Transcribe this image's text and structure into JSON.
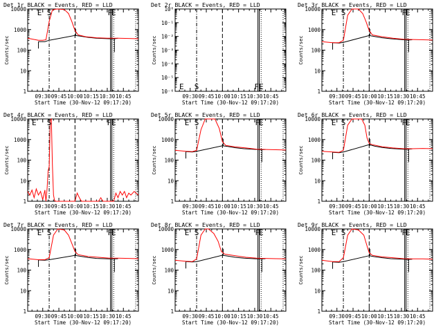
{
  "page": {
    "background": "#ffffff",
    "foreground": "#000000"
  },
  "chart_data": {
    "type": "line",
    "grid": false,
    "legend": "in-title",
    "xlabel": "Start Time (30-Nov-12 09:17:20)",
    "ylabel": "Counts/sec",
    "x_tick_labels": [
      "09:30",
      "09:45",
      "10:00",
      "10:15",
      "10:30",
      "10:45"
    ],
    "x_ticks_min": [
      570,
      585,
      600,
      615,
      630,
      645
    ],
    "xlim_min": [
      556,
      659
    ],
    "series_colors": {
      "Events": "#000000",
      "LLD": "#ff0000"
    },
    "annotations": {
      "S": "S",
      "E": "E",
      "F": "F",
      "FE": "FE"
    },
    "markers": {
      "dashdot_min": 576,
      "dashed_min": 600,
      "solid_min": 633,
      "dotted_min": 636
    },
    "panels": [
      {
        "title": "Det 1r  BLACK = Events, RED = LLD",
        "yscale": "log",
        "ylim": [
          1,
          10000
        ],
        "y_tick_labels": [
          "1",
          "10",
          "100",
          "1000",
          "10000"
        ],
        "top_letters": [
          "E",
          "S",
          "F",
          "E"
        ],
        "top_letter_x": [
          567,
          576,
          632.5,
          636
        ],
        "bottom_letters": [],
        "bottom_letter_x": [],
        "profile": "p1"
      },
      {
        "title": "Det 2r  BLACK = Events, RED = LLD",
        "yscale": "log",
        "ylim": [
          1,
          1e-06
        ],
        "y_tick_labels": [
          "10⁻⁶",
          "10⁻⁵",
          "10⁻⁴",
          "10⁻³",
          "10⁻²",
          "10⁻¹",
          "10⁰"
        ],
        "top_letters": [],
        "top_letter_x": [],
        "bottom_letters": [
          "E",
          "S",
          "FE"
        ],
        "bottom_letter_x": [
          562,
          576,
          634
        ],
        "profile": "empty"
      },
      {
        "title": "Det 3r  BLACK = Events, RED = LLD",
        "yscale": "log",
        "ylim": [
          1,
          10000
        ],
        "y_tick_labels": [
          "1",
          "10",
          "100",
          "1000",
          "10000"
        ],
        "top_letters": [
          "E",
          "S",
          "F",
          "E"
        ],
        "top_letter_x": [
          567,
          576,
          632.5,
          636
        ],
        "bottom_letters": [],
        "bottom_letter_x": [],
        "profile": "p3"
      },
      {
        "title": "Det 4r  BLACK = Events, RED = LLD",
        "yscale": "log",
        "ylim": [
          1,
          10000
        ],
        "y_tick_labels": [
          "1",
          "10",
          "100",
          "1000",
          "10000"
        ],
        "top_letters": [
          "E",
          "S",
          "FE"
        ],
        "top_letter_x": [
          562,
          576,
          634
        ],
        "bottom_letters": [],
        "bottom_letter_x": [],
        "profile": "p4"
      },
      {
        "title": "Det 5r  BLACK = Events, RED = LLD",
        "yscale": "log",
        "ylim": [
          1,
          10000
        ],
        "y_tick_labels": [
          "1",
          "10",
          "100",
          "1000",
          "10000"
        ],
        "top_letters": [
          "E",
          "S",
          "F",
          "E"
        ],
        "top_letter_x": [
          567,
          576,
          632.5,
          636
        ],
        "bottom_letters": [],
        "bottom_letter_x": [],
        "profile": "p5"
      },
      {
        "title": "Det 6r  BLACK = Events, RED = LLD",
        "yscale": "log",
        "ylim": [
          1,
          10000
        ],
        "y_tick_labels": [
          "1",
          "10",
          "100",
          "1000",
          "10000"
        ],
        "top_letters": [
          "E",
          "S",
          "F",
          "E"
        ],
        "top_letter_x": [
          567,
          576,
          632.5,
          636
        ],
        "bottom_letters": [],
        "bottom_letter_x": [],
        "profile": "p6"
      },
      {
        "title": "Det 7r  BLACK = Events, RED = LLD",
        "yscale": "log",
        "ylim": [
          1,
          10000
        ],
        "y_tick_labels": [
          "1",
          "10",
          "100",
          "1000",
          "10000"
        ],
        "top_letters": [
          "E",
          "S",
          "F",
          "E"
        ],
        "top_letter_x": [
          567,
          576,
          632.5,
          636
        ],
        "bottom_letters": [],
        "bottom_letter_x": [],
        "profile": "p7"
      },
      {
        "title": "Det 8r  BLACK = Events, RED = LLD",
        "yscale": "log",
        "ylim": [
          1,
          10000
        ],
        "y_tick_labels": [
          "1",
          "10",
          "100",
          "1000",
          "10000"
        ],
        "top_letters": [
          "E",
          "S",
          "F",
          "E"
        ],
        "top_letter_x": [
          567,
          576,
          632.5,
          636
        ],
        "bottom_letters": [],
        "bottom_letter_x": [],
        "profile": "p8"
      },
      {
        "title": "Det 9r  BLACK = Events, RED = LLD",
        "yscale": "log",
        "ylim": [
          1,
          10000
        ],
        "y_tick_labels": [
          "1",
          "10",
          "100",
          "1000",
          "10000"
        ],
        "top_letters": [
          "E",
          "S",
          "F",
          "E"
        ],
        "top_letter_x": [
          567,
          576,
          632.5,
          636
        ],
        "bottom_letters": [],
        "bottom_letter_x": [],
        "profile": "p9"
      }
    ],
    "profiles": {
      "p1": {
        "red": [
          [
            556,
            380
          ],
          [
            566,
            300
          ],
          [
            570,
            300
          ],
          [
            573,
            320
          ],
          [
            576,
            2500
          ],
          [
            579,
            9000
          ],
          [
            583,
            10000
          ],
          [
            590,
            9500
          ],
          [
            594,
            6000
          ],
          [
            597,
            2500
          ],
          [
            600,
            900
          ],
          [
            603,
            550
          ],
          [
            610,
            450
          ],
          [
            620,
            400
          ],
          [
            630,
            380
          ],
          [
            640,
            380
          ],
          [
            650,
            370
          ],
          [
            659,
            360
          ]
        ],
        "black": [
          [
            566,
            260
          ],
          [
            572,
            260
          ],
          [
            575,
            290
          ],
          [
            576,
            300
          ],
          [
            600,
            520
          ],
          [
            605,
            480
          ],
          [
            612,
            420
          ],
          [
            620,
            380
          ],
          [
            632,
            360
          ],
          [
            636,
            350
          ],
          [
            640,
            380
          ]
        ]
      },
      "p3": {
        "red": [
          [
            556,
            260
          ],
          [
            566,
            230
          ],
          [
            572,
            230
          ],
          [
            576,
            300
          ],
          [
            580,
            5000
          ],
          [
            584,
            10000
          ],
          [
            590,
            10000
          ],
          [
            594,
            6000
          ],
          [
            597,
            2500
          ],
          [
            600,
            900
          ],
          [
            603,
            550
          ],
          [
            612,
            450
          ],
          [
            622,
            380
          ],
          [
            632,
            340
          ],
          [
            640,
            330
          ],
          [
            650,
            320
          ],
          [
            659,
            310
          ]
        ],
        "black": [
          [
            566,
            230
          ],
          [
            572,
            220
          ],
          [
            576,
            240
          ],
          [
            600,
            510
          ],
          [
            605,
            460
          ],
          [
            612,
            400
          ],
          [
            620,
            360
          ],
          [
            632,
            320
          ],
          [
            636,
            310
          ],
          [
            640,
            320
          ]
        ]
      },
      "p4": {
        "red": [
          [
            556,
            3
          ],
          [
            558,
            2
          ],
          [
            560,
            3.5
          ],
          [
            562,
            1.5
          ],
          [
            564,
            4
          ],
          [
            566,
            2
          ],
          [
            568,
            3
          ],
          [
            570,
            1.2
          ],
          [
            572,
            3.5
          ],
          [
            573,
            1
          ],
          [
            574,
            4
          ],
          [
            575,
            30
          ],
          [
            576,
            50
          ],
          [
            577,
            9000
          ],
          [
            578,
            10000
          ],
          [
            579,
            60
          ],
          [
            580,
            2
          ],
          [
            581,
            1.1
          ],
          [
            582,
            1
          ],
          [
            600,
            1
          ],
          [
            602,
            2.5
          ],
          [
            604,
            1.5
          ],
          [
            606,
            1
          ],
          [
            622,
            1
          ],
          [
            624,
            1.5
          ],
          [
            626,
            1
          ],
          [
            636,
            1
          ],
          [
            638,
            2.5
          ],
          [
            640,
            1.5
          ],
          [
            642,
            3
          ],
          [
            644,
            2
          ],
          [
            646,
            3
          ],
          [
            648,
            1.5
          ],
          [
            650,
            2.5
          ],
          [
            652,
            2
          ],
          [
            655,
            3
          ],
          [
            659,
            2
          ]
        ],
        "black": []
      },
      "p5": {
        "red": [
          [
            556,
            300
          ],
          [
            566,
            270
          ],
          [
            572,
            260
          ],
          [
            576,
            300
          ],
          [
            580,
            3000
          ],
          [
            584,
            10000
          ],
          [
            593,
            10000
          ],
          [
            597,
            3500
          ],
          [
            600,
            800
          ],
          [
            603,
            520
          ],
          [
            612,
            440
          ],
          [
            622,
            390
          ],
          [
            632,
            340
          ],
          [
            640,
            330
          ],
          [
            650,
            320
          ],
          [
            659,
            310
          ]
        ],
        "black": [
          [
            566,
            260
          ],
          [
            572,
            250
          ],
          [
            576,
            270
          ],
          [
            600,
            500
          ],
          [
            605,
            460
          ],
          [
            612,
            400
          ],
          [
            620,
            360
          ],
          [
            632,
            330
          ],
          [
            636,
            320
          ],
          [
            640,
            330
          ]
        ]
      },
      "p6": {
        "red": [
          [
            556,
            270
          ],
          [
            566,
            250
          ],
          [
            572,
            240
          ],
          [
            576,
            300
          ],
          [
            580,
            5000
          ],
          [
            584,
            10000
          ],
          [
            593,
            10000
          ],
          [
            596,
            5000
          ],
          [
            598,
            1200
          ],
          [
            600,
            650
          ],
          [
            603,
            560
          ],
          [
            612,
            450
          ],
          [
            622,
            390
          ],
          [
            632,
            360
          ],
          [
            640,
            360
          ],
          [
            650,
            370
          ],
          [
            659,
            360
          ]
        ],
        "black": [
          [
            566,
            240
          ],
          [
            572,
            230
          ],
          [
            576,
            250
          ],
          [
            600,
            560
          ],
          [
            605,
            480
          ],
          [
            612,
            410
          ],
          [
            620,
            370
          ],
          [
            632,
            340
          ],
          [
            636,
            340
          ],
          [
            640,
            350
          ]
        ]
      },
      "p7": {
        "red": [
          [
            556,
            360
          ],
          [
            566,
            320
          ],
          [
            572,
            320
          ],
          [
            576,
            400
          ],
          [
            580,
            5000
          ],
          [
            584,
            10000
          ],
          [
            590,
            9000
          ],
          [
            594,
            5000
          ],
          [
            597,
            2000
          ],
          [
            600,
            800
          ],
          [
            603,
            560
          ],
          [
            612,
            460
          ],
          [
            622,
            420
          ],
          [
            632,
            380
          ],
          [
            640,
            380
          ],
          [
            650,
            370
          ],
          [
            659,
            360
          ]
        ],
        "black": [
          [
            566,
            310
          ],
          [
            572,
            300
          ],
          [
            576,
            320
          ],
          [
            600,
            520
          ],
          [
            605,
            470
          ],
          [
            612,
            410
          ],
          [
            620,
            370
          ],
          [
            632,
            350
          ],
          [
            636,
            350
          ],
          [
            640,
            360
          ]
        ]
      },
      "p8": {
        "red": [
          [
            556,
            300
          ],
          [
            566,
            270
          ],
          [
            572,
            260
          ],
          [
            576,
            350
          ],
          [
            580,
            5000
          ],
          [
            584,
            10000
          ],
          [
            587,
            10000
          ],
          [
            592,
            6000
          ],
          [
            596,
            2500
          ],
          [
            599,
            800
          ],
          [
            602,
            600
          ],
          [
            612,
            500
          ],
          [
            622,
            420
          ],
          [
            632,
            380
          ],
          [
            640,
            370
          ],
          [
            650,
            360
          ],
          [
            659,
            350
          ]
        ],
        "black": [
          [
            566,
            260
          ],
          [
            572,
            250
          ],
          [
            576,
            260
          ],
          [
            600,
            530
          ],
          [
            605,
            480
          ],
          [
            612,
            420
          ],
          [
            620,
            380
          ],
          [
            632,
            350
          ],
          [
            636,
            350
          ],
          [
            640,
            360
          ]
        ]
      },
      "p9": {
        "red": [
          [
            556,
            300
          ],
          [
            566,
            260
          ],
          [
            572,
            260
          ],
          [
            576,
            400
          ],
          [
            580,
            5000
          ],
          [
            584,
            10000
          ],
          [
            590,
            9000
          ],
          [
            595,
            5000
          ],
          [
            598,
            1500
          ],
          [
            600,
            700
          ],
          [
            603,
            520
          ],
          [
            612,
            440
          ],
          [
            622,
            400
          ],
          [
            632,
            360
          ],
          [
            640,
            350
          ],
          [
            650,
            350
          ],
          [
            659,
            340
          ]
        ],
        "black": [
          [
            566,
            250
          ],
          [
            572,
            240
          ],
          [
            576,
            260
          ],
          [
            600,
            500
          ],
          [
            605,
            450
          ],
          [
            612,
            400
          ],
          [
            620,
            360
          ],
          [
            632,
            340
          ],
          [
            636,
            330
          ],
          [
            640,
            340
          ]
        ]
      },
      "empty": {
        "red": [],
        "black": []
      }
    }
  }
}
